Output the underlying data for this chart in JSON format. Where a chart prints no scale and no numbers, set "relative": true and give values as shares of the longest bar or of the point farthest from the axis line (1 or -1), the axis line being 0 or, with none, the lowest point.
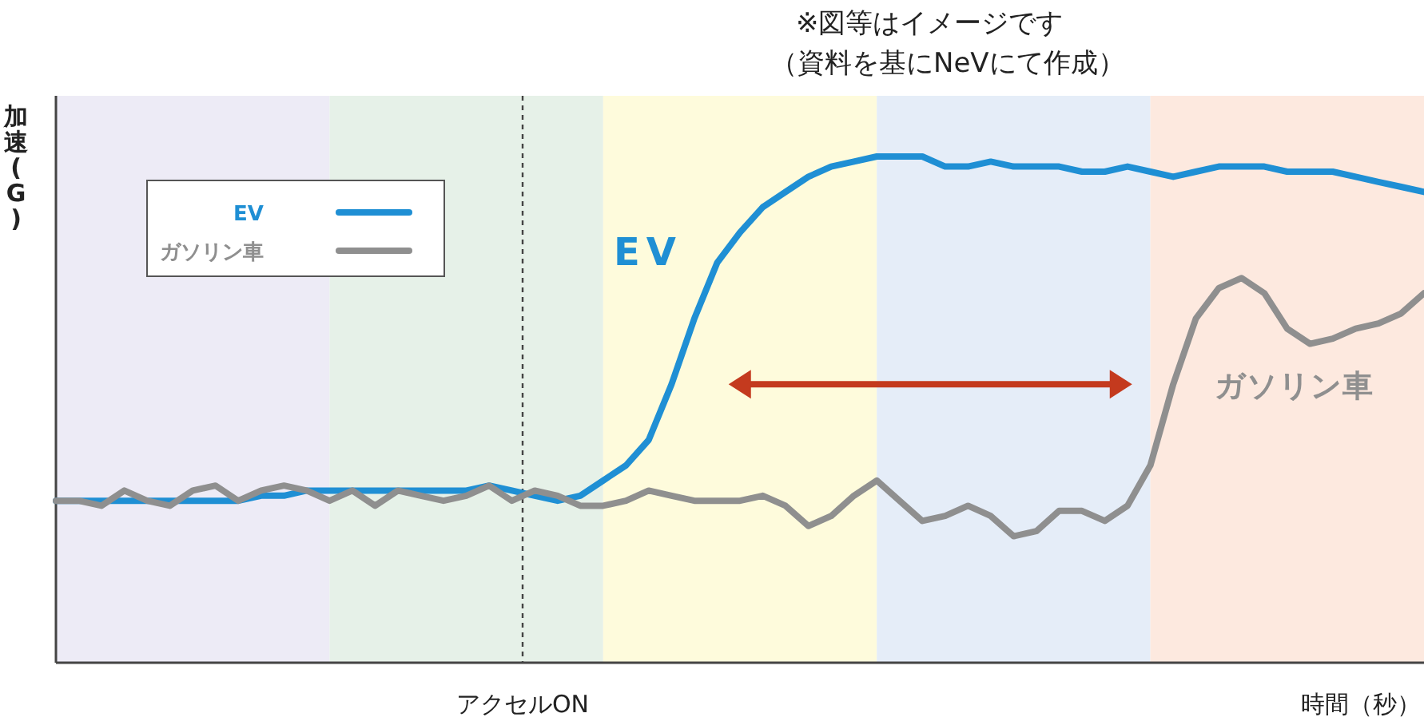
{
  "chart_data": {
    "type": "line",
    "relative": true,
    "ylabel": "加速(G)",
    "xlabel": "時間（秒）",
    "annotations": [
      "※図等はイメージです",
      "（資料を基にNeVにて作成）",
      "アクセルON",
      "EV",
      "ガソリン車"
    ],
    "categories": [
      null,
      null,
      null,
      null,
      null,
      null,
      null,
      null,
      null,
      null,
      null,
      null,
      null,
      null,
      null,
      null,
      null,
      null,
      null,
      null,
      null,
      null,
      null,
      null,
      null,
      null,
      null,
      null,
      null,
      null,
      null,
      null,
      null,
      null,
      null,
      null,
      null,
      null,
      null,
      null,
      null,
      null,
      null,
      null,
      null,
      null,
      null,
      null,
      null,
      null,
      null,
      null,
      null,
      null,
      null,
      null,
      null,
      null,
      null,
      null,
      null
    ],
    "series": [
      {
        "name": "EV",
        "color": "#1f8fd4",
        "values": [
          0.32,
          0.32,
          0.32,
          0.32,
          0.32,
          0.32,
          0.32,
          0.32,
          0.32,
          0.33,
          0.33,
          0.34,
          0.34,
          0.34,
          0.34,
          0.34,
          0.34,
          0.34,
          0.34,
          0.35,
          0.34,
          0.33,
          0.32,
          0.33,
          0.36,
          0.39,
          0.44,
          0.55,
          0.68,
          0.79,
          0.85,
          0.9,
          0.93,
          0.96,
          0.98,
          0.99,
          1.0,
          1.0,
          1.0,
          0.98,
          0.98,
          0.99,
          0.98,
          0.98,
          0.98,
          0.97,
          0.97,
          0.98,
          0.97,
          0.96,
          0.97,
          0.98,
          0.98,
          0.98,
          0.97,
          0.97,
          0.97,
          0.96,
          0.95,
          0.94,
          0.93
        ]
      },
      {
        "name": "ガソリン車",
        "color": "#8f8f8f",
        "values": [
          0.32,
          0.32,
          0.31,
          0.34,
          0.32,
          0.31,
          0.34,
          0.35,
          0.32,
          0.34,
          0.35,
          0.34,
          0.32,
          0.34,
          0.31,
          0.34,
          0.33,
          0.32,
          0.33,
          0.35,
          0.32,
          0.34,
          0.33,
          0.31,
          0.31,
          0.32,
          0.34,
          0.33,
          0.32,
          0.32,
          0.32,
          0.33,
          0.31,
          0.27,
          0.29,
          0.33,
          0.36,
          0.32,
          0.28,
          0.29,
          0.31,
          0.29,
          0.25,
          0.26,
          0.3,
          0.3,
          0.28,
          0.31,
          0.39,
          0.55,
          0.68,
          0.74,
          0.76,
          0.73,
          0.66,
          0.63,
          0.64,
          0.66,
          0.67,
          0.69,
          0.73
        ]
      }
    ],
    "legend": "top left",
    "grid": false,
    "marker": "none",
    "line_style": "solid"
  }
}
